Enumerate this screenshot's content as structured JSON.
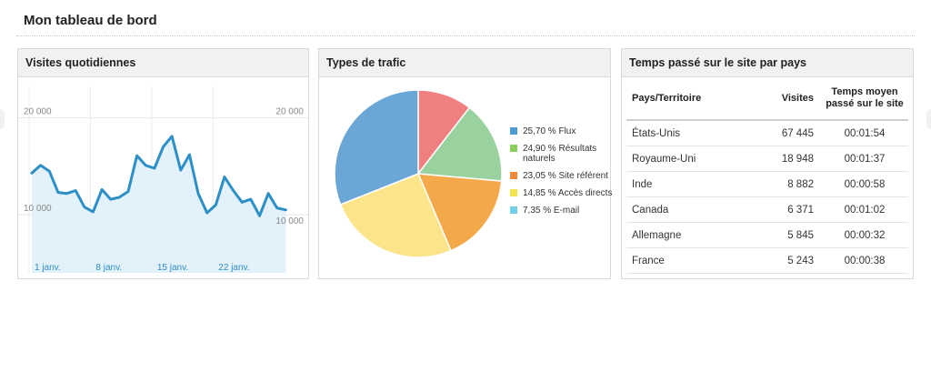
{
  "dashboard": {
    "title": "Mon tableau de bord"
  },
  "widgets": {
    "visits": {
      "title": "Visites quotidiennes"
    },
    "traffic": {
      "title": "Types de trafic"
    },
    "countries": {
      "title": "Temps passé sur le site par pays",
      "columns": {
        "country": "Pays/Territoire",
        "visits": "Visites",
        "time": "Temps moyen passé sur le site"
      },
      "rows": [
        {
          "country": "États-Unis",
          "visits": "67 445",
          "time": "00:01:54"
        },
        {
          "country": "Royaume-Uni",
          "visits": "18 948",
          "time": "00:01:37"
        },
        {
          "country": "Inde",
          "visits": "8 882",
          "time": "00:00:58"
        },
        {
          "country": "Canada",
          "visits": "6 371",
          "time": "00:01:02"
        },
        {
          "country": "Allemagne",
          "visits": "5 845",
          "time": "00:00:32"
        },
        {
          "country": "France",
          "visits": "5 243",
          "time": "00:00:38"
        }
      ]
    }
  },
  "colors": {
    "line": "#2e8fc6",
    "area": "#e3f1fa"
  },
  "chart_data": [
    {
      "type": "area",
      "title": "Visites quotidiennes",
      "y_left_labels": [
        "20 000",
        "10 000"
      ],
      "y_right_labels": [
        "20 000",
        "10 000"
      ],
      "x_labels": [
        "1 janv.",
        "8 janv.",
        "15 janv.",
        "22 janv."
      ],
      "x_label_days": [
        1,
        8,
        15,
        22
      ],
      "ylim": [
        4000,
        24000
      ],
      "xlim": [
        0,
        30
      ],
      "x": [
        0,
        1,
        2,
        3,
        4,
        5,
        6,
        7,
        8,
        9,
        10,
        11,
        12,
        13,
        14,
        15,
        16,
        17,
        18,
        19,
        20,
        21,
        22,
        23,
        24,
        25,
        26,
        27,
        28,
        29
      ],
      "values": [
        14300,
        15100,
        14500,
        12300,
        12200,
        12500,
        10800,
        10300,
        12600,
        11600,
        11800,
        12400,
        16100,
        15100,
        14800,
        17000,
        18100,
        14600,
        16200,
        12200,
        10200,
        11000,
        13900,
        12500,
        11300,
        11600,
        9900,
        12200,
        10700,
        10500
      ],
      "grid": true
    },
    {
      "type": "pie",
      "title": "Types de trafic",
      "legend_position": "right",
      "slices": [
        {
          "label": "25,70 % Flux",
          "value": 25.7,
          "color": "#4b9bd4"
        },
        {
          "label": "24,90 % Résultats naturels",
          "value": 24.9,
          "color": "#8ccf5c"
        },
        {
          "label": "23,05 % Site référent",
          "value": 23.05,
          "color": "#f08a3a"
        },
        {
          "label": "14,85 % Accès directs",
          "value": 14.85,
          "color": "#f2e24c"
        },
        {
          "label": "7,35 % E-mail",
          "value": 7.35,
          "color": "#6fd0ea"
        }
      ],
      "drawn_sectors": [
        {
          "value": 10.5,
          "color": "#f07f7f"
        },
        {
          "value": 15.9,
          "color": "#99d29f"
        },
        {
          "value": 17.2,
          "color": "#f3a94a"
        },
        {
          "value": 25.4,
          "color": "#fbe48a"
        },
        {
          "value": 31.0,
          "color": "#6aa6d6"
        }
      ]
    }
  ]
}
